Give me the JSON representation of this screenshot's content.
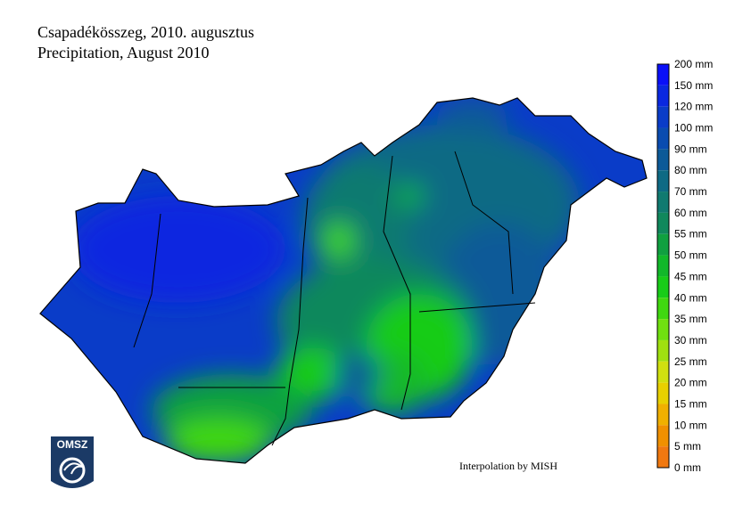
{
  "title": [
    "Csapadékösszeg, 2010. augusztus",
    "Precipitation, August 2010"
  ],
  "legend": {
    "labels": [
      "200 mm",
      "150 mm",
      "120 mm",
      "100 mm",
      "90 mm",
      "80 mm",
      "70 mm",
      "60 mm",
      "55 mm",
      "50 mm",
      "45 mm",
      "40 mm",
      "35 mm",
      "30 mm",
      "25 mm",
      "20 mm",
      "15 mm",
      "10 mm",
      "5 mm",
      "0 mm"
    ],
    "colors": [
      "#0a10f8",
      "#0a28e0",
      "#0a3cc8",
      "#0a4cb0",
      "#0c5a98",
      "#0e6a84",
      "#107a70",
      "#10885c",
      "#10a040",
      "#12b82a",
      "#18cc18",
      "#40d810",
      "#70e010",
      "#a0e010",
      "#d0e010",
      "#e8d000",
      "#f0b000",
      "#f09000",
      "#f07810"
    ]
  },
  "credit": "Interpolation by MISH",
  "logo": "OMSZ"
}
